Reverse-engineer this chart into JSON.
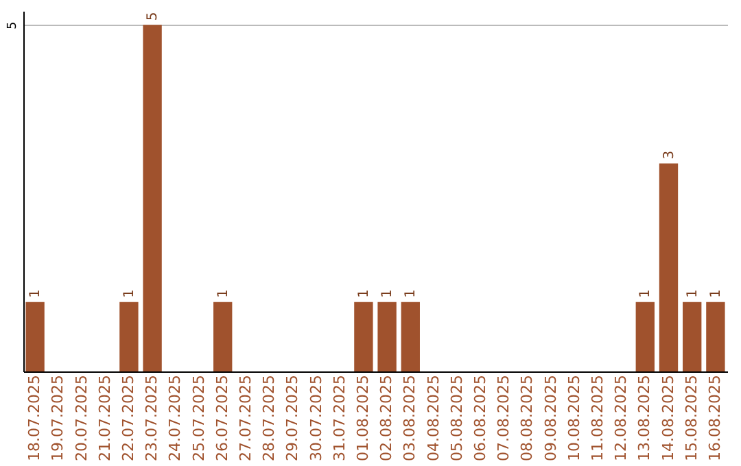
{
  "chart_data": {
    "type": "bar",
    "categories": [
      "18.07.2025",
      "19.07.2025",
      "20.07.2025",
      "21.07.2025",
      "22.07.2025",
      "23.07.2025",
      "24.07.2025",
      "25.07.2025",
      "26.07.2025",
      "27.07.2025",
      "28.07.2025",
      "29.07.2025",
      "30.07.2025",
      "31.07.2025",
      "01.08.2025",
      "02.08.2025",
      "03.08.2025",
      "04.08.2025",
      "05.08.2025",
      "06.08.2025",
      "07.08.2025",
      "08.08.2025",
      "09.08.2025",
      "10.08.2025",
      "11.08.2025",
      "12.08.2025",
      "13.08.2025",
      "14.08.2025",
      "15.08.2025",
      "16.08.2025"
    ],
    "values": [
      1,
      0,
      0,
      0,
      1,
      5,
      0,
      0,
      1,
      0,
      0,
      0,
      0,
      0,
      1,
      1,
      1,
      0,
      0,
      0,
      0,
      0,
      0,
      0,
      0,
      0,
      1,
      3,
      1,
      1
    ],
    "value_labels": [
      "1",
      null,
      null,
      null,
      "1",
      "5",
      null,
      null,
      "1",
      null,
      null,
      null,
      null,
      null,
      "1",
      "1",
      "1",
      null,
      null,
      null,
      null,
      null,
      null,
      null,
      null,
      null,
      "1",
      "3",
      "1",
      "1"
    ],
    "color": "#a0522d",
    "ylim": [
      0,
      5.2
    ],
    "yticks": [
      5
    ],
    "grid": "y"
  }
}
